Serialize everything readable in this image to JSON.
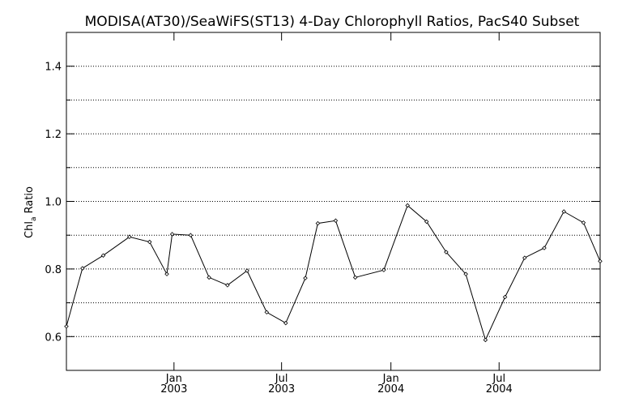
{
  "chart_data": {
    "type": "line",
    "title": "MODISA(AT30)/SeaWiFS(ST13) 4-Day Chlorophyll Ratios, PacS40 Subset",
    "ylabel": {
      "main": "Chl",
      "sub": "a",
      "rest": " Ratio"
    },
    "xlabel": "",
    "ylim": [
      0.5,
      1.5
    ],
    "x_range": [
      "2002-07-04",
      "2004-12-18"
    ],
    "y_ticks": [
      0.6,
      0.8,
      1.0,
      1.2,
      1.4
    ],
    "y_tick_labels": [
      "0.6",
      "0.8",
      "1.0",
      "1.2",
      "1.4"
    ],
    "y_gridlines": [
      0.6,
      0.7,
      0.8,
      0.9,
      1.0,
      1.1,
      1.2,
      1.3,
      1.4
    ],
    "x_ticks": [
      {
        "date": "2003-01-01",
        "month": "Jan",
        "year": "2003"
      },
      {
        "date": "2003-07-01",
        "month": "Jul",
        "year": "2003"
      },
      {
        "date": "2004-01-01",
        "month": "Jan",
        "year": "2004"
      },
      {
        "date": "2004-07-01",
        "month": "Jul",
        "year": "2004"
      }
    ],
    "grid": "horizontal dotted",
    "marker": "diamond",
    "series": [
      {
        "x": [
          "2002-07-04",
          "2002-07-31",
          "2002-09-04",
          "2002-10-18",
          "2002-11-21",
          "2002-12-20",
          "2002-12-29",
          "2003-01-29",
          "2003-03-01",
          "2003-04-01",
          "2003-05-04",
          "2003-06-06",
          "2003-07-08",
          "2003-08-10",
          "2003-08-31",
          "2003-09-30",
          "2003-11-02",
          "2003-12-20",
          "2004-01-29",
          "2004-03-01",
          "2004-04-03",
          "2004-05-06",
          "2004-06-08",
          "2004-07-11",
          "2004-08-13",
          "2004-09-15",
          "2004-10-18",
          "2004-11-20",
          "2004-12-18"
        ],
        "values": [
          0.63,
          0.802,
          0.84,
          0.895,
          0.88,
          0.785,
          0.903,
          0.9,
          0.775,
          0.752,
          0.795,
          0.672,
          0.64,
          0.773,
          0.935,
          0.943,
          0.775,
          0.797,
          0.988,
          0.94,
          0.85,
          0.785,
          0.59,
          0.717,
          0.833,
          0.862,
          0.97,
          0.937,
          0.823
        ]
      }
    ],
    "colors": {
      "line": "#000000",
      "grid": "#000000",
      "background": "#ffffff"
    }
  }
}
